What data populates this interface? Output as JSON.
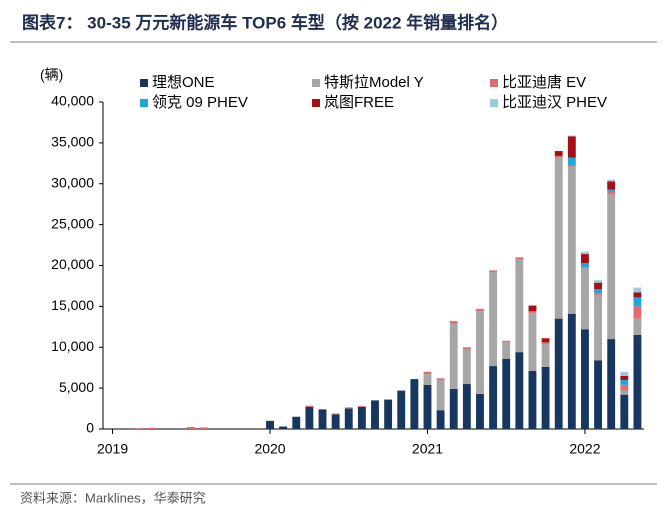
{
  "chart_data": {
    "type": "stacked-bar",
    "title": "图表7： 30-35 万元新能源车 TOP6 车型（按 2022 年销量排名）",
    "y_label": "(辆)",
    "source": "资料来源：Marklines，华泰研究",
    "categories": [
      "2019",
      null,
      null,
      null,
      null,
      null,
      null,
      null,
      null,
      null,
      null,
      null,
      "2020",
      null,
      null,
      null,
      null,
      null,
      null,
      null,
      null,
      null,
      null,
      null,
      "2021",
      null,
      null,
      null,
      null,
      null,
      null,
      null,
      null,
      null,
      null,
      null,
      "2022",
      null,
      null,
      null,
      null
    ],
    "ylim": [
      0,
      40000
    ],
    "yticks": [
      0,
      {
        "value": 5000,
        "label": "5,000"
      },
      {
        "value": 10000,
        "label": "10,000"
      },
      {
        "value": 15000,
        "label": "15,000"
      },
      {
        "value": 20000,
        "label": "20,000"
      },
      {
        "value": 25000,
        "label": "25,000"
      },
      {
        "value": 30000,
        "label": "30,000"
      },
      {
        "value": 35000,
        "label": "35,000"
      },
      {
        "value": 40000,
        "label": "40,000"
      }
    ],
    "series": [
      {
        "name": "理想ONE",
        "color": "#17375e",
        "values": [
          0,
          0,
          0,
          0,
          0,
          0,
          0,
          0,
          0,
          0,
          0,
          0,
          1000,
          300,
          1500,
          2700,
          2400,
          1800,
          2500,
          2700,
          3500,
          3600,
          4700,
          6100,
          5400,
          2300,
          4900,
          5500,
          4300,
          7700,
          8600,
          9400,
          7100,
          7600,
          13500,
          14100,
          12200,
          8400,
          11000,
          4200,
          11500
        ]
      },
      {
        "name": "特斯拉Model Y",
        "color": "#a6a6a6",
        "values": [
          0,
          0,
          0,
          0,
          0,
          0,
          0,
          0,
          0,
          0,
          0,
          0,
          0,
          0,
          0,
          0,
          0,
          0,
          0,
          0,
          0,
          0,
          0,
          0,
          1300,
          3700,
          8000,
          4200,
          10100,
          11500,
          2000,
          11400,
          7100,
          2800,
          19700,
          18000,
          7500,
          8000,
          17700,
          500,
          2000
        ]
      },
      {
        "name": "比亚迪唐 EV",
        "color": "#e06c6c",
        "values": [
          0,
          0,
          100,
          150,
          0,
          0,
          250,
          200,
          0,
          0,
          0,
          0,
          0,
          0,
          0,
          150,
          0,
          100,
          150,
          100,
          0,
          0,
          0,
          0,
          300,
          200,
          300,
          300,
          300,
          200,
          200,
          200,
          200,
          200,
          200,
          200,
          100,
          200,
          300,
          700,
          1500
        ]
      },
      {
        "name": "领克 09 PHEV",
        "color": "#1ea6dc",
        "values": [
          0,
          0,
          0,
          0,
          0,
          0,
          0,
          0,
          0,
          0,
          0,
          0,
          0,
          0,
          0,
          0,
          0,
          0,
          0,
          0,
          0,
          0,
          0,
          0,
          0,
          0,
          0,
          0,
          0,
          0,
          0,
          0,
          0,
          0,
          0,
          900,
          500,
          500,
          300,
          600,
          1100
        ]
      },
      {
        "name": "岚图FREE",
        "color": "#a50f15",
        "values": [
          0,
          0,
          0,
          0,
          0,
          0,
          0,
          0,
          0,
          0,
          0,
          0,
          0,
          0,
          0,
          0,
          0,
          0,
          0,
          0,
          0,
          0,
          0,
          0,
          0,
          0,
          0,
          0,
          0,
          0,
          0,
          0,
          700,
          500,
          600,
          2600,
          1100,
          800,
          1000,
          500,
          600
        ]
      },
      {
        "name": "比亚迪汉 PHEV",
        "color": "#9ccbe0",
        "values": [
          0,
          0,
          0,
          0,
          0,
          0,
          0,
          0,
          0,
          0,
          0,
          0,
          0,
          0,
          0,
          0,
          0,
          0,
          0,
          0,
          0,
          0,
          0,
          0,
          0,
          0,
          0,
          0,
          0,
          0,
          0,
          0,
          0,
          0,
          0,
          100,
          300,
          300,
          200,
          500,
          600
        ]
      }
    ],
    "legend": "top"
  }
}
